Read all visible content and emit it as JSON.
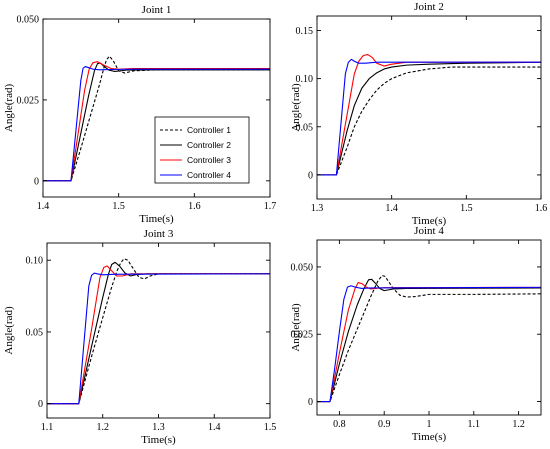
{
  "legend": [
    "Controller 1",
    "Controller 2",
    "Controller 3",
    "Controller 4"
  ],
  "colors": {
    "controller_1": "#000000",
    "controller_2": "#000000",
    "controller_3": "#ff0000",
    "controller_4": "#0000ff"
  },
  "line_styles": [
    "dashed",
    "solid",
    "solid",
    "solid"
  ],
  "chart_data": [
    {
      "type": "line",
      "title": "Joint 1",
      "xlabel": "Time(s)",
      "ylabel": "Angle(rad)",
      "xlim": [
        1.4,
        1.7
      ],
      "ylim": [
        -0.005,
        0.05
      ],
      "xticks": [
        1.4,
        1.5,
        1.6,
        1.7
      ],
      "xtick_labels": [
        "1.4",
        "1.5",
        "1.6",
        "1.7"
      ],
      "yticks": [
        0,
        0.025,
        0.05
      ],
      "ytick_labels": [
        "0",
        "0.025",
        "0.050"
      ],
      "legend_position": "center-right",
      "series": [
        {
          "name": "Controller 1",
          "x": [
            1.4,
            1.437,
            1.45,
            1.465,
            1.475,
            1.48,
            1.484,
            1.488,
            1.493,
            1.5,
            1.508,
            1.52,
            1.55,
            1.6,
            1.7
          ],
          "y": [
            0,
            0,
            0.01,
            0.022,
            0.03,
            0.0345,
            0.0375,
            0.0385,
            0.037,
            0.034,
            0.0333,
            0.034,
            0.0343,
            0.0343,
            0.0343
          ]
        },
        {
          "name": "Controller 2",
          "x": [
            1.4,
            1.437,
            1.46,
            1.468,
            1.472,
            1.476,
            1.48,
            1.487,
            1.495,
            1.51,
            1.55,
            1.7
          ],
          "y": [
            0,
            0,
            0.026,
            0.034,
            0.0362,
            0.0364,
            0.0355,
            0.0342,
            0.0338,
            0.0342,
            0.0343,
            0.0343
          ]
        },
        {
          "name": "Controller 3",
          "x": [
            1.4,
            1.437,
            1.455,
            1.461,
            1.466,
            1.472,
            1.48,
            1.49,
            1.5,
            1.52,
            1.55,
            1.7
          ],
          "y": [
            0,
            0,
            0.028,
            0.0345,
            0.0365,
            0.0368,
            0.0358,
            0.0347,
            0.0345,
            0.0347,
            0.0347,
            0.0347
          ]
        },
        {
          "name": "Controller 4",
          "x": [
            1.4,
            1.437,
            1.45,
            1.453,
            1.456,
            1.46,
            1.466,
            1.475,
            1.49,
            1.52,
            1.7
          ],
          "y": [
            0,
            0,
            0.031,
            0.0348,
            0.0353,
            0.035,
            0.0345,
            0.0343,
            0.0344,
            0.0345,
            0.0345
          ]
        }
      ]
    },
    {
      "type": "line",
      "title": "Joint 2",
      "xlabel": "Time(s)",
      "ylabel": "Angle(rad)",
      "xlim": [
        1.3,
        1.6
      ],
      "ylim": [
        -0.025,
        0.165
      ],
      "xticks": [
        1.3,
        1.4,
        1.5,
        1.6
      ],
      "xtick_labels": [
        "1.3",
        "1.4",
        "1.5",
        "1.6"
      ],
      "yticks": [
        0,
        0.05,
        0.1,
        0.15
      ],
      "ytick_labels": [
        "0",
        "0.05",
        "0.10",
        "0.15"
      ],
      "series": [
        {
          "name": "Controller 1",
          "x": [
            1.3,
            1.326,
            1.34,
            1.35,
            1.36,
            1.37,
            1.38,
            1.39,
            1.4,
            1.42,
            1.45,
            1.48,
            1.5,
            1.6
          ],
          "y": [
            0,
            0,
            0.028,
            0.05,
            0.066,
            0.078,
            0.088,
            0.095,
            0.1,
            0.106,
            0.11,
            0.112,
            0.112,
            0.112
          ]
        },
        {
          "name": "Controller 2",
          "x": [
            1.3,
            1.326,
            1.34,
            1.35,
            1.36,
            1.37,
            1.38,
            1.39,
            1.4,
            1.42,
            1.45,
            1.5,
            1.6
          ],
          "y": [
            0,
            0,
            0.045,
            0.072,
            0.09,
            0.1,
            0.106,
            0.11,
            0.112,
            0.114,
            0.115,
            0.116,
            0.117
          ]
        },
        {
          "name": "Controller 3",
          "x": [
            1.3,
            1.326,
            1.35,
            1.356,
            1.362,
            1.368,
            1.374,
            1.38,
            1.39,
            1.4,
            1.42,
            1.6
          ],
          "y": [
            0,
            0,
            0.105,
            0.118,
            0.124,
            0.125,
            0.122,
            0.116,
            0.113,
            0.115,
            0.117,
            0.117
          ]
        },
        {
          "name": "Controller 4",
          "x": [
            1.3,
            1.326,
            1.338,
            1.342,
            1.346,
            1.35,
            1.356,
            1.365,
            1.38,
            1.6
          ],
          "y": [
            0,
            0,
            0.105,
            0.117,
            0.12,
            0.118,
            0.116,
            0.116,
            0.117,
            0.117
          ]
        }
      ]
    },
    {
      "type": "line",
      "title": "Joint 3",
      "xlabel": "Time(s)",
      "ylabel": "Angle(rad)",
      "xlim": [
        1.1,
        1.5
      ],
      "ylim": [
        -0.01,
        0.112
      ],
      "xticks": [
        1.1,
        1.2,
        1.3,
        1.4,
        1.5
      ],
      "xtick_labels": [
        "1.1",
        "1.2",
        "1.3",
        "1.4",
        "1.5"
      ],
      "yticks": [
        0,
        0.05,
        0.1
      ],
      "ytick_labels": [
        "0",
        "0.05",
        "0.10"
      ],
      "series": [
        {
          "name": "Controller 1",
          "x": [
            1.1,
            1.157,
            1.18,
            1.2,
            1.215,
            1.225,
            1.232,
            1.238,
            1.245,
            1.255,
            1.265,
            1.275,
            1.285,
            1.3,
            1.5
          ],
          "y": [
            0,
            0,
            0.033,
            0.06,
            0.08,
            0.092,
            0.098,
            0.101,
            0.1,
            0.094,
            0.088,
            0.087,
            0.089,
            0.0905,
            0.0905
          ]
        },
        {
          "name": "Controller 2",
          "x": [
            1.1,
            1.157,
            1.18,
            1.2,
            1.21,
            1.216,
            1.222,
            1.23,
            1.24,
            1.25,
            1.26,
            1.28,
            1.5
          ],
          "y": [
            0,
            0,
            0.04,
            0.074,
            0.09,
            0.097,
            0.0985,
            0.096,
            0.091,
            0.089,
            0.09,
            0.0905,
            0.0905
          ]
        },
        {
          "name": "Controller 3",
          "x": [
            1.1,
            1.157,
            1.18,
            1.195,
            1.202,
            1.208,
            1.215,
            1.225,
            1.235,
            1.25,
            1.5
          ],
          "y": [
            0,
            0,
            0.052,
            0.088,
            0.095,
            0.096,
            0.093,
            0.089,
            0.089,
            0.0905,
            0.0905
          ]
        },
        {
          "name": "Controller 4",
          "x": [
            1.1,
            1.157,
            1.175,
            1.18,
            1.185,
            1.19,
            1.2,
            1.22,
            1.5
          ],
          "y": [
            0,
            0,
            0.082,
            0.0895,
            0.091,
            0.0905,
            0.0898,
            0.0902,
            0.0905
          ]
        }
      ]
    },
    {
      "type": "line",
      "title": "Joint 4",
      "xlabel": "Time(s)",
      "ylabel": "Angle(rad)",
      "xlim": [
        0.75,
        1.25
      ],
      "ylim": [
        -0.005,
        0.06
      ],
      "xticks": [
        0.8,
        0.9,
        1,
        1.1,
        1.2
      ],
      "xtick_labels": [
        "0.8",
        "0.9",
        "1",
        "1.1",
        "1.2"
      ],
      "yticks": [
        0,
        0.025,
        0.05
      ],
      "ytick_labels": [
        "0",
        "0.025",
        "0.050"
      ],
      "series": [
        {
          "name": "Controller 1",
          "x": [
            0.75,
            0.779,
            0.8,
            0.82,
            0.84,
            0.855,
            0.87,
            0.885,
            0.895,
            0.902,
            0.91,
            0.92,
            0.935,
            0.95,
            0.97,
            1,
            1.1,
            1.25
          ],
          "y": [
            0,
            0,
            0.01,
            0.019,
            0.027,
            0.033,
            0.039,
            0.0445,
            0.0468,
            0.0465,
            0.0445,
            0.042,
            0.0395,
            0.0388,
            0.039,
            0.0398,
            0.0398,
            0.04
          ]
        },
        {
          "name": "Controller 2",
          "x": [
            0.75,
            0.779,
            0.8,
            0.82,
            0.84,
            0.855,
            0.865,
            0.872,
            0.88,
            0.89,
            0.9,
            0.92,
            0.95,
            1.25
          ],
          "y": [
            0,
            0,
            0.014,
            0.026,
            0.036,
            0.042,
            0.0452,
            0.0454,
            0.044,
            0.042,
            0.0412,
            0.0418,
            0.042,
            0.0422
          ]
        },
        {
          "name": "Controller 3",
          "x": [
            0.75,
            0.779,
            0.8,
            0.82,
            0.835,
            0.842,
            0.85,
            0.86,
            0.87,
            0.88,
            0.9,
            1.25
          ],
          "y": [
            0,
            0,
            0.018,
            0.034,
            0.042,
            0.0442,
            0.0438,
            0.0425,
            0.0418,
            0.042,
            0.0423,
            0.0424
          ]
        },
        {
          "name": "Controller 4",
          "x": [
            0.75,
            0.779,
            0.79,
            0.8,
            0.81,
            0.818,
            0.826,
            0.835,
            0.85,
            0.87,
            1.25
          ],
          "y": [
            0,
            0,
            0.013,
            0.026,
            0.038,
            0.0425,
            0.043,
            0.0425,
            0.042,
            0.0422,
            0.0424
          ]
        }
      ]
    }
  ]
}
